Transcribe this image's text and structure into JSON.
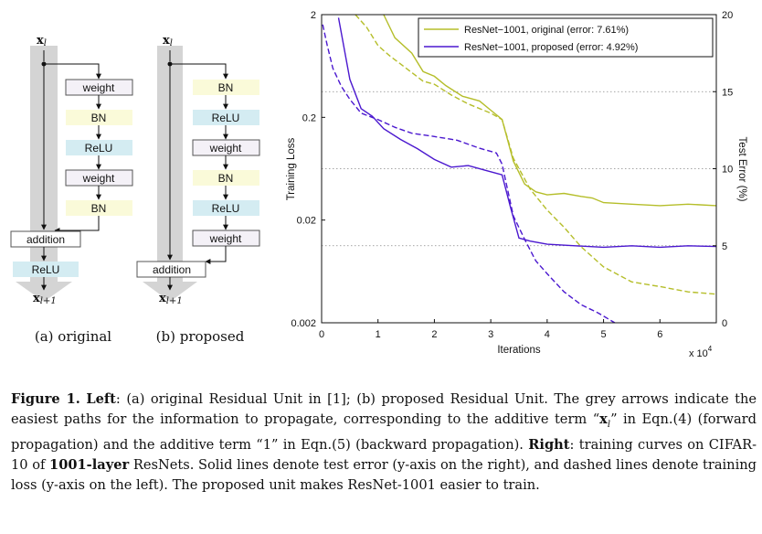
{
  "diagram": {
    "original": {
      "input": "x",
      "input_sub": "l",
      "output": "x",
      "output_sub": "l+1",
      "branch": [
        "weight",
        "BN",
        "ReLU",
        "weight",
        "BN"
      ],
      "addition": "addition",
      "post": "ReLU",
      "sublabel": "(a) original"
    },
    "proposed": {
      "input": "x",
      "input_sub": "l",
      "output": "x",
      "output_sub": "l+1",
      "branch": [
        "BN",
        "ReLU",
        "weight",
        "BN",
        "ReLU",
        "weight"
      ],
      "addition": "addition",
      "sublabel": "(b) proposed"
    },
    "colors": {
      "weight": "#f4f1f7",
      "BN": "#fafad9",
      "ReLU": "#d4ecf2",
      "arrow": "#d4d4d4"
    }
  },
  "chart_data": {
    "type": "line",
    "x_unit_label": "x 10",
    "x_unit_exp": "4",
    "xlabel": "Iterations",
    "ylabel_left": "Training Loss",
    "ylabel_right": "Test Error (%)",
    "xlim": [
      0,
      7
    ],
    "x_ticks": [
      "0",
      "1",
      "2",
      "3",
      "4",
      "5",
      "6"
    ],
    "ylim_left": [
      0.002,
      2
    ],
    "y_left_scale": "log",
    "y_left_ticks": [
      "2",
      "0.2",
      "0.02",
      "0.002"
    ],
    "ylim_right": [
      0,
      20
    ],
    "y_right_ticks": [
      "20",
      "15",
      "10",
      "5",
      "0"
    ],
    "grid": "dotted horizontal",
    "legend_position": "top-right",
    "series": [
      {
        "name": "ResNet−1001, original (error: 7.61%)",
        "color": "#b5be2a",
        "style": "solid",
        "axis": "right",
        "x": [
          1.1,
          1.3,
          1.6,
          1.8,
          2.0,
          2.2,
          2.5,
          2.8,
          3.0,
          3.2,
          3.4,
          3.6,
          3.8,
          4.0,
          4.3,
          4.6,
          4.8,
          5.0,
          5.5,
          6.0,
          6.5,
          7.0
        ],
        "y": [
          20,
          18.5,
          17.5,
          16.3,
          16.0,
          15.4,
          14.7,
          14.4,
          13.8,
          13.2,
          10.5,
          9.0,
          8.5,
          8.3,
          8.4,
          8.2,
          8.1,
          7.8,
          7.7,
          7.6,
          7.7,
          7.6
        ]
      },
      {
        "name": "ResNet−1001, proposed (error: 4.92%)",
        "color": "#4b18cf",
        "style": "solid",
        "axis": "right",
        "x": [
          0.3,
          0.5,
          0.7,
          0.9,
          1.1,
          1.4,
          1.7,
          2.0,
          2.3,
          2.6,
          2.9,
          3.2,
          3.35,
          3.5,
          3.7,
          4.0,
          4.5,
          5.0,
          5.5,
          6.0,
          6.5,
          7.0
        ],
        "y": [
          19.8,
          15.8,
          13.9,
          13.4,
          12.6,
          11.9,
          11.3,
          10.6,
          10.1,
          10.2,
          9.9,
          9.6,
          7.5,
          5.5,
          5.3,
          5.1,
          5.0,
          4.9,
          5.0,
          4.9,
          5.0,
          4.95
        ]
      },
      {
        "name": "",
        "color": "#b5be2a",
        "style": "dashed",
        "axis": "left",
        "x": [
          0.6,
          0.8,
          1.0,
          1.2,
          1.5,
          1.8,
          2.0,
          2.3,
          2.6,
          3.0,
          3.2,
          3.4,
          3.7,
          4.0,
          4.3,
          4.6,
          5.0,
          5.5,
          6.0,
          6.5,
          7.0
        ],
        "y": [
          2.0,
          1.5,
          1.0,
          0.8,
          0.6,
          0.45,
          0.42,
          0.33,
          0.27,
          0.22,
          0.19,
          0.08,
          0.04,
          0.025,
          0.017,
          0.011,
          0.007,
          0.005,
          0.0045,
          0.004,
          0.0038
        ]
      },
      {
        "name": "",
        "color": "#4b18cf",
        "style": "dashed",
        "axis": "left",
        "x": [
          0.02,
          0.1,
          0.2,
          0.35,
          0.5,
          0.7,
          1.0,
          1.3,
          1.6,
          2.0,
          2.4,
          2.8,
          3.1,
          3.2,
          3.4,
          3.6,
          3.8,
          4.0,
          4.3,
          4.6,
          4.9,
          5.2
        ],
        "y": [
          1.6,
          1.0,
          0.6,
          0.4,
          0.3,
          0.22,
          0.19,
          0.16,
          0.14,
          0.13,
          0.12,
          0.1,
          0.09,
          0.07,
          0.022,
          0.013,
          0.008,
          0.006,
          0.004,
          0.003,
          0.0025,
          0.002
        ]
      }
    ]
  },
  "caption": {
    "fig_label": "Figure 1.",
    "left_label": "Left",
    "part1": ": (a) original Residual Unit in [1]; (b) proposed Residual Unit. The grey arrows indicate the easiest paths for the information to propagate, corresponding to the additive term “",
    "math_x": "x",
    "math_sub": "l",
    "part2": "” in Eqn.(4) (forward propagation) and the additive term “1” in Eqn.(5) (backward propagation). ",
    "right_label": "Right",
    "part3": ": training curves on CIFAR-10 of ",
    "bold_phrase": "1001-layer",
    "part4": " ResNets. Solid lines denote test error (y-axis on the right), and dashed lines denote training loss (y-axis on the left). The proposed unit makes ResNet-1001 easier to train."
  }
}
